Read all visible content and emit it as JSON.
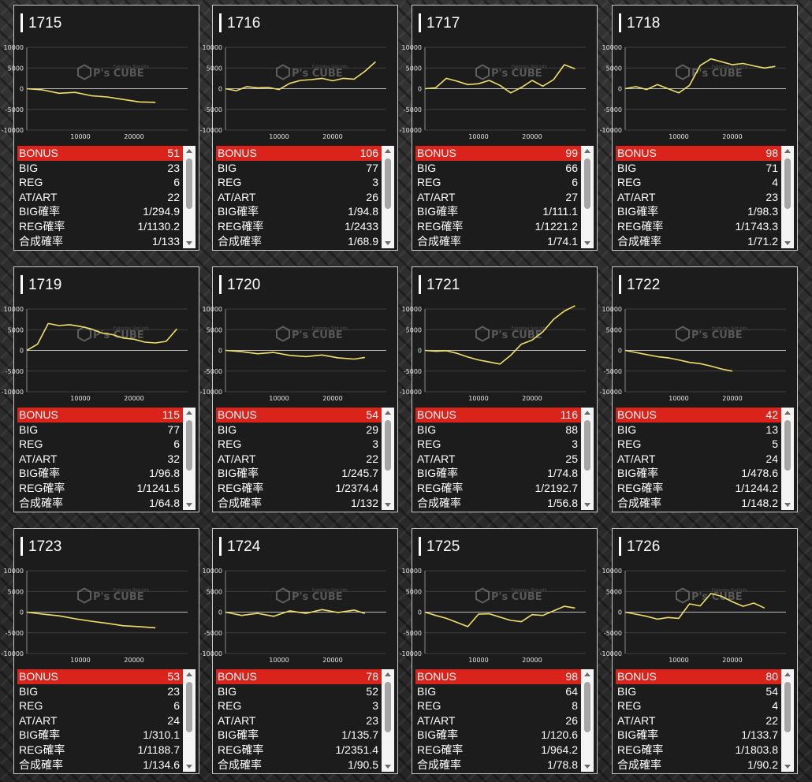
{
  "labels": {
    "bonus": "BONUS",
    "big": "BIG",
    "reg": "REG",
    "at": "AT/ART",
    "big_rate": "BIG確率",
    "reg_rate": "REG確率",
    "total_rate": "合成確率"
  },
  "watermark": {
    "logo": "P's CUBE",
    "sub": "Fujimitsu Slot Info"
  },
  "colors": {
    "bonus_bar": "#d9231b",
    "line": "#f0e06a",
    "panel": "#1c1c1c"
  },
  "y_ticks": [
    "10000",
    "5000",
    "0",
    "-5000",
    "-10000"
  ],
  "x_ticks": [
    "10000",
    "20000"
  ],
  "machines": [
    {
      "id": "1715",
      "bonus": "51",
      "big": "23",
      "reg": "6",
      "at": "22",
      "big_rate": "1/294.9",
      "reg_rate": "1/1130.2",
      "total_rate": "1/133",
      "chart_data": {
        "type": "line",
        "x": [
          0,
          3000,
          6000,
          9000,
          12000,
          15000,
          18000,
          21000,
          24000
        ],
        "y": [
          0,
          -300,
          -1100,
          -900,
          -1700,
          -2000,
          -2600,
          -3200,
          -3300
        ],
        "ylim": [
          -10000,
          10000
        ]
      }
    },
    {
      "id": "1716",
      "bonus": "106",
      "big": "77",
      "reg": "3",
      "at": "26",
      "big_rate": "1/94.8",
      "reg_rate": "1/2433",
      "total_rate": "1/68.9",
      "chart_data": {
        "type": "line",
        "x": [
          0,
          2000,
          4000,
          6000,
          8000,
          10000,
          12000,
          14000,
          16000,
          18000,
          20000,
          22000,
          24000,
          26000,
          28000
        ],
        "y": [
          0,
          -500,
          500,
          200,
          300,
          -200,
          1300,
          2000,
          2200,
          2500,
          1900,
          2500,
          2300,
          4200,
          6500
        ],
        "ylim": [
          -10000,
          10000
        ]
      }
    },
    {
      "id": "1717",
      "bonus": "99",
      "big": "66",
      "reg": "6",
      "at": "27",
      "big_rate": "1/111.1",
      "reg_rate": "1/1221.2",
      "total_rate": "1/74.1",
      "chart_data": {
        "type": "line",
        "x": [
          0,
          2000,
          4000,
          6000,
          8000,
          10000,
          12000,
          14000,
          16000,
          18000,
          20000,
          22000,
          24000,
          26000,
          28000
        ],
        "y": [
          0,
          200,
          2500,
          1800,
          1000,
          1200,
          2000,
          800,
          -1000,
          300,
          2000,
          600,
          2200,
          5800,
          4800
        ],
        "ylim": [
          -10000,
          10000
        ]
      }
    },
    {
      "id": "1718",
      "bonus": "98",
      "big": "71",
      "reg": "4",
      "at": "23",
      "big_rate": "1/98.3",
      "reg_rate": "1/1743.3",
      "total_rate": "1/71.2",
      "chart_data": {
        "type": "line",
        "x": [
          0,
          2000,
          4000,
          6000,
          8000,
          10000,
          12000,
          14000,
          16000,
          18000,
          20000,
          22000,
          24000,
          26000,
          28000
        ],
        "y": [
          0,
          500,
          -200,
          1000,
          0,
          -1000,
          800,
          5600,
          7200,
          6500,
          5800,
          6100,
          5500,
          5000,
          5400
        ],
        "ylim": [
          -10000,
          10000
        ]
      }
    },
    {
      "id": "1719",
      "bonus": "115",
      "big": "77",
      "reg": "6",
      "at": "32",
      "big_rate": "1/96.8",
      "reg_rate": "1/1241.5",
      "total_rate": "1/64.8",
      "chart_data": {
        "type": "line",
        "x": [
          0,
          2000,
          4000,
          6000,
          8000,
          10000,
          12000,
          14000,
          16000,
          18000,
          20000,
          22000,
          24000,
          26000,
          28000
        ],
        "y": [
          0,
          1500,
          6500,
          6000,
          6200,
          5800,
          5200,
          4200,
          3800,
          3000,
          2700,
          2000,
          1800,
          2200,
          5200
        ],
        "ylim": [
          -10000,
          10000
        ]
      }
    },
    {
      "id": "1720",
      "bonus": "54",
      "big": "29",
      "reg": "3",
      "at": "22",
      "big_rate": "1/245.7",
      "reg_rate": "1/2374.4",
      "total_rate": "1/132",
      "chart_data": {
        "type": "line",
        "x": [
          0,
          3000,
          6000,
          9000,
          12000,
          15000,
          18000,
          21000,
          24000,
          26000
        ],
        "y": [
          0,
          -300,
          -800,
          -500,
          -1200,
          -1500,
          -1100,
          -1800,
          -2100,
          -1700
        ],
        "ylim": [
          -10000,
          10000
        ]
      }
    },
    {
      "id": "1721",
      "bonus": "116",
      "big": "88",
      "reg": "3",
      "at": "25",
      "big_rate": "1/74.8",
      "reg_rate": "1/2192.7",
      "total_rate": "1/56.8",
      "chart_data": {
        "type": "line",
        "x": [
          0,
          2000,
          4000,
          6000,
          8000,
          10000,
          12000,
          14000,
          16000,
          18000,
          20000,
          22000,
          24000,
          26000,
          28000
        ],
        "y": [
          0,
          -200,
          -100,
          -700,
          -1600,
          -2300,
          -2800,
          -3300,
          -1200,
          1500,
          2500,
          4500,
          7500,
          9500,
          10800
        ],
        "ylim": [
          -10000,
          10000
        ]
      }
    },
    {
      "id": "1722",
      "bonus": "42",
      "big": "13",
      "reg": "5",
      "at": "24",
      "big_rate": "1/478.6",
      "reg_rate": "1/1244.2",
      "total_rate": "1/148.2",
      "chart_data": {
        "type": "line",
        "x": [
          0,
          2000,
          4000,
          6000,
          8000,
          10000,
          12000,
          14000,
          16000,
          18000,
          20000
        ],
        "y": [
          0,
          -500,
          -1000,
          -1500,
          -1800,
          -2300,
          -2900,
          -3200,
          -3800,
          -4500,
          -5000
        ],
        "ylim": [
          -10000,
          10000
        ]
      }
    },
    {
      "id": "1723",
      "bonus": "53",
      "big": "23",
      "reg": "6",
      "at": "24",
      "big_rate": "1/310.1",
      "reg_rate": "1/1188.7",
      "total_rate": "1/134.6",
      "chart_data": {
        "type": "line",
        "x": [
          0,
          3000,
          6000,
          9000,
          12000,
          15000,
          18000,
          21000,
          24000
        ],
        "y": [
          0,
          -500,
          -900,
          -1600,
          -2200,
          -2700,
          -3300,
          -3500,
          -3800
        ],
        "ylim": [
          -10000,
          10000
        ]
      }
    },
    {
      "id": "1724",
      "bonus": "78",
      "big": "52",
      "reg": "3",
      "at": "23",
      "big_rate": "1/135.7",
      "reg_rate": "1/2351.4",
      "total_rate": "1/90.5",
      "chart_data": {
        "type": "line",
        "x": [
          0,
          3000,
          6000,
          9000,
          12000,
          15000,
          18000,
          21000,
          24000,
          26000
        ],
        "y": [
          0,
          -800,
          -300,
          -1000,
          300,
          -300,
          600,
          -100,
          500,
          -300
        ],
        "ylim": [
          -10000,
          10000
        ]
      }
    },
    {
      "id": "1725",
      "bonus": "98",
      "big": "64",
      "reg": "8",
      "at": "26",
      "big_rate": "1/120.6",
      "reg_rate": "1/964.2",
      "total_rate": "1/78.8",
      "chart_data": {
        "type": "line",
        "x": [
          0,
          2000,
          4000,
          6000,
          8000,
          10000,
          12000,
          14000,
          16000,
          18000,
          20000,
          22000,
          24000,
          26000,
          28000
        ],
        "y": [
          0,
          -800,
          -1500,
          -2500,
          -3500,
          -500,
          -400,
          -1200,
          -2000,
          -2300,
          -600,
          -800,
          300,
          1400,
          1000
        ],
        "ylim": [
          -10000,
          10000
        ]
      }
    },
    {
      "id": "1726",
      "bonus": "80",
      "big": "54",
      "reg": "4",
      "at": "22",
      "big_rate": "1/133.7",
      "reg_rate": "1/1803.8",
      "total_rate": "1/90.2",
      "chart_data": {
        "type": "line",
        "x": [
          0,
          2000,
          4000,
          6000,
          8000,
          10000,
          12000,
          14000,
          16000,
          18000,
          20000,
          22000,
          24000,
          26000
        ],
        "y": [
          0,
          -500,
          -1000,
          -1700,
          -1300,
          -1500,
          2000,
          1500,
          4500,
          3800,
          2500,
          1400,
          2200,
          1000
        ],
        "ylim": [
          -10000,
          10000
        ]
      }
    }
  ]
}
